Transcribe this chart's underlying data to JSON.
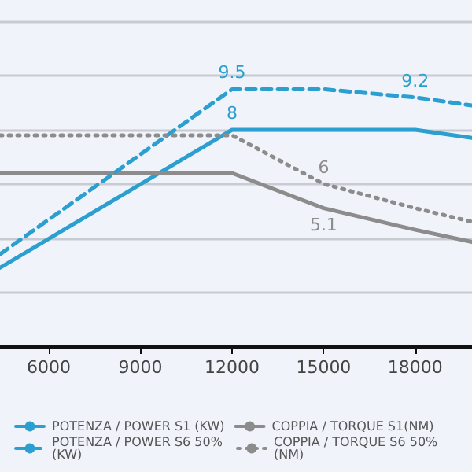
{
  "chart_data": {
    "type": "line",
    "xlim": [
      4400,
      19860
    ],
    "xticks": [
      6000,
      9000,
      12000,
      15000,
      18000
    ],
    "ylim": [
      0,
      12.8
    ],
    "yticks": [
      {
        "value": 0,
        "label": null
      },
      {
        "value": 2,
        "label": null
      },
      {
        "value": 4,
        "label": null
      },
      {
        "value": 6,
        "label": null
      },
      {
        "value": 8,
        "label": null
      },
      {
        "value": 10,
        "label": null
      },
      {
        "value": 12,
        "label": null
      }
    ],
    "tick_labels": "x",
    "grid": "y",
    "legend": "bottom",
    "marker": "none",
    "series": [
      {
        "name": "POTENZA / POWER S1 (KW)",
        "color": "#2a9fd0",
        "line_style": "solid",
        "x": [
          4400,
          12000,
          18000,
          19860
        ],
        "values": [
          2.9,
          8,
          8,
          7.7
        ],
        "value_labels": [
          null,
          "8",
          null,
          null
        ]
      },
      {
        "name": "COPPIA / TORQUE S1(NM)",
        "color": "#8c8c8c",
        "line_style": "solid",
        "x": [
          4400,
          12000,
          15000,
          18000,
          19860
        ],
        "values": [
          6.4,
          6.4,
          5.1,
          4.3,
          3.85
        ],
        "value_labels": [
          null,
          null,
          "5.1",
          null,
          null
        ]
      },
      {
        "name": "POTENZA / POWER S6 50% (KW)",
        "color": "#2a9fd0",
        "line_style": "dashed",
        "x": [
          4400,
          12000,
          15000,
          18000,
          19860
        ],
        "values": [
          3.4,
          9.5,
          9.5,
          9.2,
          8.9
        ],
        "value_labels": [
          null,
          "9.5",
          null,
          "9.2",
          null
        ]
      },
      {
        "name": "COPPIA / TORQUE S6 50% (NM)",
        "color": "#8c8c8c",
        "line_style": "dotted",
        "x": [
          4400,
          12000,
          15000,
          18000,
          19860
        ],
        "values": [
          7.8,
          7.8,
          6,
          5.1,
          4.6
        ],
        "value_labels": [
          null,
          null,
          "6",
          null,
          null
        ]
      }
    ]
  }
}
